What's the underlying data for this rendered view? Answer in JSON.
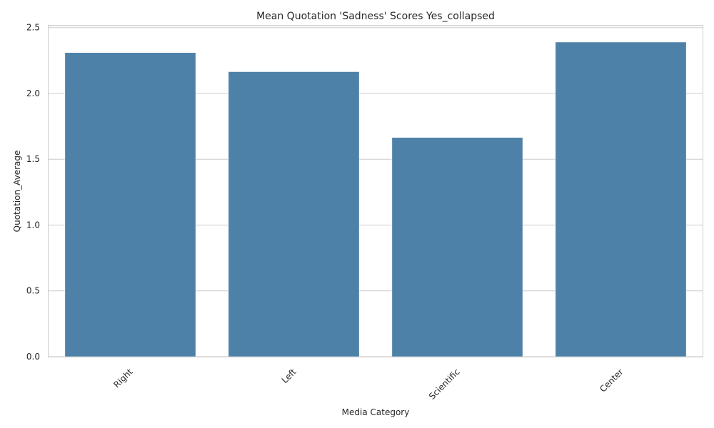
{
  "chart_data": {
    "type": "bar",
    "title": "Mean Quotation 'Sadness' Scores Yes_collapsed",
    "xlabel": "Media Category",
    "ylabel": "Quotation_Average",
    "categories": [
      "Right",
      "Left",
      "Scientific",
      "Center"
    ],
    "values": [
      2.31,
      2.165,
      1.665,
      2.39
    ],
    "ylim": [
      0,
      2.52
    ],
    "yticks": [
      "0.0",
      "0.5",
      "1.0",
      "1.5",
      "2.0",
      "2.5"
    ],
    "grid": true,
    "bar_color": "#4e81a7",
    "grid_color": "#cccccc"
  }
}
